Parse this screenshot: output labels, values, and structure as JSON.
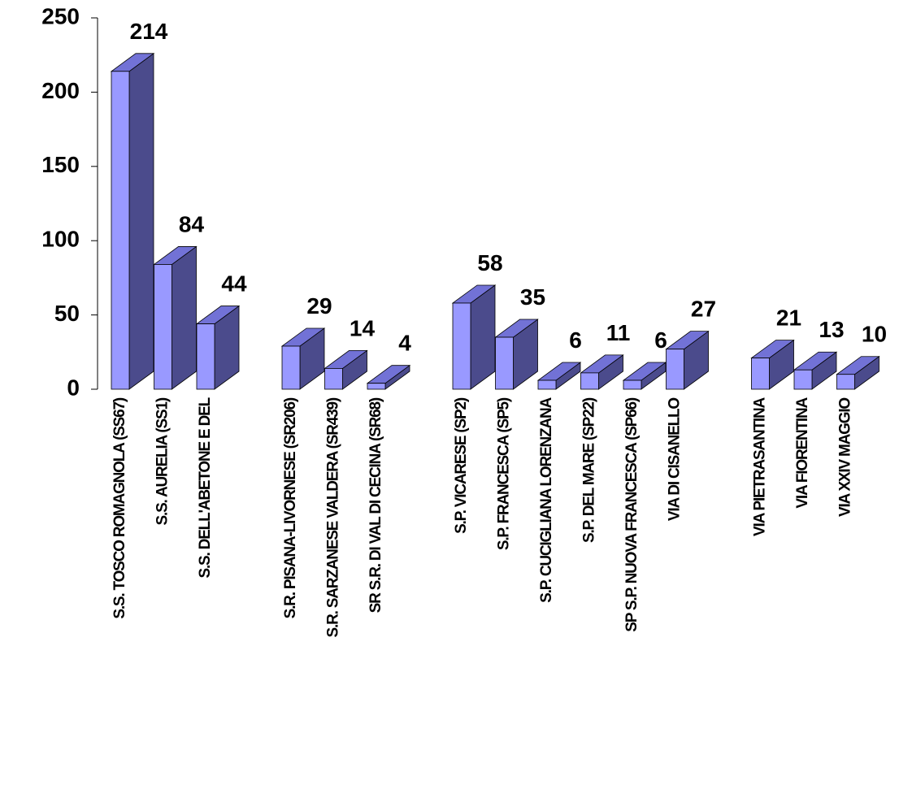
{
  "chart_data": {
    "type": "bar3d",
    "categories": [
      "S.S. TOSCO ROMAGNOLA (SS67)",
      "S.S. AURELIA (SS1)",
      "S.S. DELL'ABETONE E DEL",
      null,
      "S.R. PISANA-LIVORNESE (SR206)",
      "S.R. SARZANESE VALDERA (SR439)",
      "SR S.R. DI VAL DI CECINA (SR68)",
      null,
      "S.P. VICARESE (SP2)",
      "S.P. FRANCESCA (SP5)",
      "S.P. CUCIGLIANA LORENZANA",
      "S.P. DEL MARE (SP22)",
      "SP S.P. NUOVA FRANCESCA (SP66)",
      "VIA DI CISANELLO",
      null,
      "VIA PIETRASANTINA",
      "VIA FIORENTINA",
      "VIA XXIV MAGGIO"
    ],
    "values": [
      214,
      84,
      44,
      null,
      29,
      14,
      4,
      null,
      58,
      35,
      6,
      11,
      6,
      27,
      null,
      21,
      13,
      10
    ],
    "color": "#9999ff",
    "ylim": [
      0,
      250
    ],
    "yticks": [
      0,
      50,
      100,
      150,
      200,
      250
    ]
  }
}
